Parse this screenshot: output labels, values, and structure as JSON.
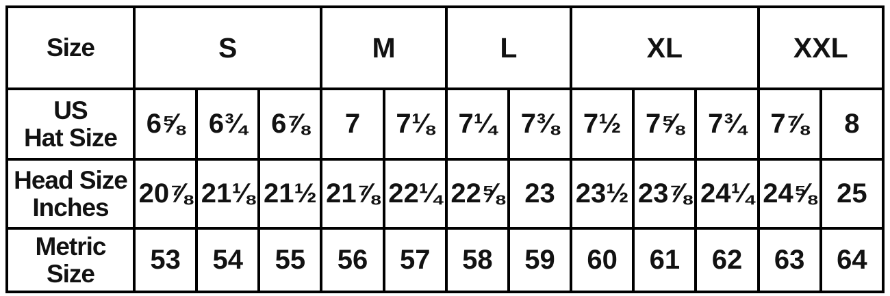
{
  "chart_data": {
    "type": "table",
    "corner_header": "Size",
    "size_groups": [
      {
        "label": "S",
        "span": 3
      },
      {
        "label": "M",
        "span": 2
      },
      {
        "label": "L",
        "span": 2
      },
      {
        "label": "XL",
        "span": 3
      },
      {
        "label": "XXL",
        "span": 2
      }
    ],
    "rows": [
      {
        "label_lines": [
          "US",
          "Hat Size"
        ],
        "values": [
          "6⅝",
          "6¾",
          "6⅞",
          "7",
          "7⅛",
          "7¼",
          "7⅜",
          "7½",
          "7⅝",
          "7¾",
          "7⅞",
          "8"
        ]
      },
      {
        "label_lines": [
          "Head Size",
          "Inches"
        ],
        "values": [
          "20⅞",
          "21⅛",
          "21½",
          "21⅞",
          "22¼",
          "22⅝",
          "23",
          "23½",
          "23⅞",
          "24¼",
          "24⅝",
          "25"
        ]
      },
      {
        "label_lines": [
          "Metric",
          "Size"
        ],
        "values": [
          "53",
          "54",
          "55",
          "56",
          "57",
          "58",
          "59",
          "60",
          "61",
          "62",
          "63",
          "64"
        ]
      }
    ],
    "layout_hints": {
      "column_count": 13,
      "grid_on": true
    },
    "colors": {
      "border": "#000000",
      "text": "#121212",
      "background": "#ffffff"
    }
  }
}
